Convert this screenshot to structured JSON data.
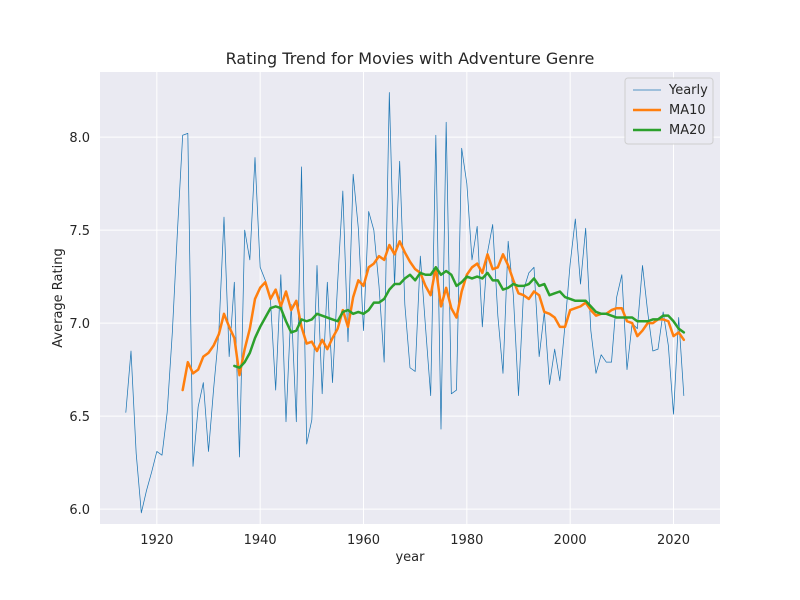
{
  "chart_data": {
    "type": "line",
    "title": "Rating Trend for Movies with Adventure Genre",
    "xlabel": "year",
    "ylabel": "Average Rating",
    "xlim": [
      1909,
      2029
    ],
    "ylim": [
      5.92,
      8.35
    ],
    "xticks": [
      1920,
      1940,
      1960,
      1980,
      2000,
      2020
    ],
    "yticks": [
      6.0,
      6.5,
      7.0,
      7.5,
      8.0
    ],
    "ytick_labels": [
      "6.0",
      "6.5",
      "7.0",
      "7.5",
      "8.0"
    ],
    "grid": true,
    "legend_position": "top-right",
    "series": [
      {
        "name": "Yearly",
        "color": "#1f77b4",
        "x": [
          1914,
          1915,
          1916,
          1917,
          1918,
          1919,
          1920,
          1921,
          1922,
          1923,
          1924,
          1925,
          1926,
          1927,
          1928,
          1929,
          1930,
          1931,
          1932,
          1933,
          1934,
          1935,
          1936,
          1937,
          1938,
          1939,
          1940,
          1941,
          1942,
          1943,
          1944,
          1945,
          1946,
          1947,
          1948,
          1949,
          1950,
          1951,
          1952,
          1953,
          1954,
          1955,
          1956,
          1957,
          1958,
          1959,
          1960,
          1961,
          1962,
          1963,
          1964,
          1965,
          1966,
          1967,
          1968,
          1969,
          1970,
          1971,
          1972,
          1973,
          1974,
          1975,
          1976,
          1977,
          1978,
          1979,
          1980,
          1981,
          1982,
          1983,
          1984,
          1985,
          1986,
          1987,
          1988,
          1989,
          1990,
          1991,
          1992,
          1993,
          1994,
          1995,
          1996,
          1997,
          1998,
          1999,
          2000,
          2001,
          2002,
          2003,
          2004,
          2005,
          2006,
          2007,
          2008,
          2009,
          2010,
          2011,
          2012,
          2013,
          2014,
          2015,
          2016,
          2017,
          2018,
          2019,
          2020,
          2021,
          2022
        ],
        "values": [
          6.52,
          6.85,
          6.3,
          5.98,
          6.1,
          6.2,
          6.31,
          6.29,
          6.52,
          6.95,
          7.5,
          8.01,
          8.02,
          6.23,
          6.55,
          6.68,
          6.31,
          6.65,
          6.95,
          7.57,
          6.82,
          7.22,
          6.28,
          7.5,
          7.34,
          7.89,
          7.3,
          7.23,
          7.12,
          6.64,
          7.26,
          6.47,
          7.1,
          6.47,
          7.84,
          6.35,
          6.48,
          7.31,
          6.62,
          7.22,
          6.68,
          7.22,
          7.71,
          6.9,
          7.8,
          7.51,
          6.96,
          7.6,
          7.5,
          7.2,
          6.79,
          8.24,
          7.2,
          7.87,
          7.1,
          6.76,
          6.74,
          7.36,
          6.98,
          6.61,
          8.01,
          6.43,
          8.08,
          6.62,
          6.64,
          7.94,
          7.75,
          7.34,
          7.52,
          6.98,
          7.38,
          7.53,
          7.04,
          6.73,
          7.44,
          7.15,
          6.61,
          7.18,
          7.27,
          7.3,
          6.82,
          7.06,
          6.67,
          6.86,
          6.69,
          6.99,
          7.32,
          7.56,
          7.21,
          7.51,
          6.96,
          6.73,
          6.83,
          6.79,
          6.79,
          7.14,
          7.26,
          6.75,
          7.0,
          6.97,
          7.31,
          7.06,
          6.85,
          6.86,
          7.06,
          6.88,
          6.51,
          7.03,
          6.61
        ]
      },
      {
        "name": "MA10",
        "color": "#ff7f0e",
        "x": [
          1925,
          1926,
          1927,
          1928,
          1929,
          1930,
          1931,
          1932,
          1933,
          1934,
          1935,
          1936,
          1937,
          1938,
          1939,
          1940,
          1941,
          1942,
          1943,
          1944,
          1945,
          1946,
          1947,
          1948,
          1949,
          1950,
          1951,
          1952,
          1953,
          1954,
          1955,
          1956,
          1957,
          1958,
          1959,
          1960,
          1961,
          1962,
          1963,
          1964,
          1965,
          1966,
          1967,
          1968,
          1969,
          1970,
          1971,
          1972,
          1973,
          1974,
          1975,
          1976,
          1977,
          1978,
          1979,
          1980,
          1981,
          1982,
          1983,
          1984,
          1985,
          1986,
          1987,
          1988,
          1989,
          1990,
          1991,
          1992,
          1993,
          1994,
          1995,
          1996,
          1997,
          1998,
          1999,
          2000,
          2001,
          2002,
          2003,
          2004,
          2005,
          2006,
          2007,
          2008,
          2009,
          2010,
          2011,
          2012,
          2013,
          2014,
          2015,
          2016,
          2017,
          2018,
          2019,
          2020,
          2021,
          2022
        ],
        "values": [
          6.64,
          6.79,
          6.73,
          6.75,
          6.82,
          6.84,
          6.88,
          6.94,
          7.05,
          6.98,
          6.92,
          6.72,
          6.86,
          6.97,
          7.13,
          7.19,
          7.22,
          7.13,
          7.18,
          7.09,
          7.17,
          7.07,
          7.12,
          6.98,
          6.89,
          6.9,
          6.85,
          6.91,
          6.86,
          6.92,
          6.97,
          7.07,
          6.98,
          7.14,
          7.23,
          7.2,
          7.3,
          7.32,
          7.36,
          7.34,
          7.42,
          7.37,
          7.44,
          7.38,
          7.33,
          7.29,
          7.27,
          7.2,
          7.15,
          7.3,
          7.09,
          7.19,
          7.08,
          7.03,
          7.17,
          7.26,
          7.3,
          7.32,
          7.27,
          7.37,
          7.29,
          7.3,
          7.37,
          7.31,
          7.23,
          7.16,
          7.15,
          7.13,
          7.17,
          7.15,
          7.06,
          7.05,
          7.03,
          6.98,
          6.98,
          7.07,
          7.08,
          7.09,
          7.11,
          7.07,
          7.04,
          7.05,
          7.05,
          7.07,
          7.08,
          7.08,
          7.01,
          7.0,
          6.93,
          6.96,
          7.0,
          7.0,
          7.02,
          7.02,
          7.01,
          6.93,
          6.95,
          6.91
        ]
      },
      {
        "name": "MA20",
        "color": "#2ca02c",
        "x": [
          1935,
          1936,
          1937,
          1938,
          1939,
          1940,
          1941,
          1942,
          1943,
          1944,
          1945,
          1946,
          1947,
          1948,
          1949,
          1950,
          1951,
          1952,
          1953,
          1954,
          1955,
          1956,
          1957,
          1958,
          1959,
          1960,
          1961,
          1962,
          1963,
          1964,
          1965,
          1966,
          1967,
          1968,
          1969,
          1970,
          1971,
          1972,
          1973,
          1974,
          1975,
          1976,
          1977,
          1978,
          1979,
          1980,
          1981,
          1982,
          1983,
          1984,
          1985,
          1986,
          1987,
          1988,
          1989,
          1990,
          1991,
          1992,
          1993,
          1994,
          1995,
          1996,
          1997,
          1998,
          1999,
          2000,
          2001,
          2002,
          2003,
          2004,
          2005,
          2006,
          2007,
          2008,
          2009,
          2010,
          2011,
          2012,
          2013,
          2014,
          2015,
          2016,
          2017,
          2018,
          2019,
          2020,
          2021,
          2022
        ],
        "values": [
          6.77,
          6.76,
          6.79,
          6.84,
          6.92,
          6.98,
          7.03,
          7.08,
          7.09,
          7.08,
          7.01,
          6.95,
          6.96,
          7.02,
          7.01,
          7.02,
          7.05,
          7.04,
          7.03,
          7.02,
          7.01,
          7.06,
          7.07,
          7.05,
          7.06,
          7.05,
          7.07,
          7.11,
          7.11,
          7.13,
          7.18,
          7.21,
          7.21,
          7.24,
          7.26,
          7.23,
          7.27,
          7.26,
          7.26,
          7.3,
          7.26,
          7.28,
          7.26,
          7.2,
          7.22,
          7.25,
          7.24,
          7.25,
          7.24,
          7.27,
          7.23,
          7.23,
          7.18,
          7.19,
          7.21,
          7.2,
          7.2,
          7.21,
          7.24,
          7.2,
          7.21,
          7.15,
          7.16,
          7.17,
          7.14,
          7.13,
          7.12,
          7.12,
          7.12,
          7.09,
          7.06,
          7.05,
          7.05,
          7.04,
          7.03,
          7.03,
          7.03,
          7.03,
          7.01,
          7.01,
          7.01,
          7.02,
          7.02,
          7.04,
          7.04,
          7.01,
          6.97,
          6.95
        ]
      }
    ]
  }
}
